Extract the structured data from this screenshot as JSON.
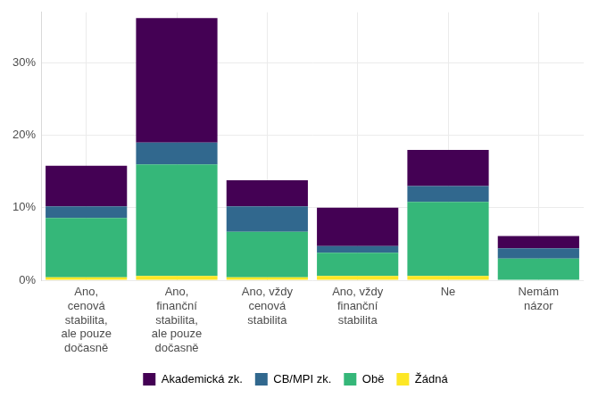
{
  "chart_data": {
    "type": "bar",
    "stacked": true,
    "grid": true,
    "legend": "bottom",
    "categories": [
      [
        "Ano,",
        "cenová",
        "stabilita,",
        "ale pouze",
        "dočasně"
      ],
      [
        "Ano,",
        "finanční",
        "stabilita,",
        "ale pouze",
        "dočasně"
      ],
      [
        "Ano, vždy",
        "cenová",
        "stabilita"
      ],
      [
        "Ano, vždy",
        "finanční",
        "stabilita"
      ],
      [
        "Ne"
      ],
      [
        "Nemám",
        "názor"
      ]
    ],
    "series": [
      {
        "name": "Akademická zk.",
        "color": "#440154",
        "values": [
          5.6,
          17.2,
          3.6,
          5.3,
          5.0,
          1.7
        ]
      },
      {
        "name": "CB/MPI zk.",
        "color": "#31688e",
        "values": [
          1.6,
          3.0,
          3.5,
          0.9,
          2.2,
          1.4
        ]
      },
      {
        "name": "Obě",
        "color": "#35b779",
        "values": [
          8.2,
          15.4,
          6.3,
          3.2,
          10.2,
          3.0
        ]
      },
      {
        "name": "Žádná",
        "color": "#fde725",
        "values": [
          0.4,
          0.6,
          0.4,
          0.6,
          0.6,
          0.0
        ]
      }
    ],
    "ylim": [
      0,
      37
    ],
    "yticks": [
      {
        "value": 0,
        "label": "0%"
      },
      {
        "value": 10,
        "label": "10%"
      },
      {
        "value": 20,
        "label": "20%"
      },
      {
        "value": 30,
        "label": "30%"
      }
    ]
  }
}
